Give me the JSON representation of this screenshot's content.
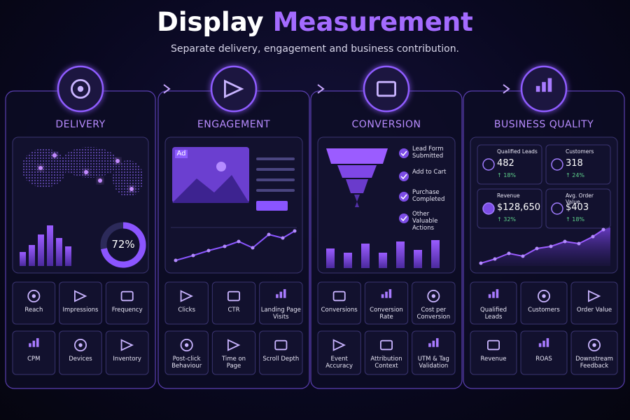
{
  "title": {
    "part1": "Display",
    "part2": "Measurement"
  },
  "subtitle": "Separate delivery, engagement and business contribution.",
  "columns": [
    {
      "heading": "DELIVERY",
      "donut": {
        "value": 72,
        "label": "72%"
      },
      "tiles": [
        "Reach",
        "Impressions",
        "Frequency",
        "CPM",
        "Devices",
        "Inventory"
      ]
    },
    {
      "heading": "ENGAGEMENT",
      "ad_label": "Ad",
      "tiles": [
        "Clicks",
        "CTR",
        "Landing Page Visits",
        "Post-click Behaviour",
        "Time on Page",
        "Scroll Depth"
      ]
    },
    {
      "heading": "CONVERSION",
      "funnel_steps": [
        "Lead Form Submitted",
        "Add to Cart",
        "Purchase Completed",
        "Other Valuable Actions"
      ],
      "tiles": [
        "Conversions",
        "Conversion Rate",
        "Cost per Conversion",
        "Event Accuracy",
        "Attribution Context",
        "UTM & Tag Validation"
      ]
    },
    {
      "heading": "BUSINESS QUALITY",
      "metrics": [
        {
          "label": "Qualified Leads",
          "value": "482",
          "change": "↑ 18%"
        },
        {
          "label": "Customers",
          "value": "318",
          "change": "↑ 24%"
        },
        {
          "label": "Revenue",
          "value": "$128,650",
          "change": "↑ 32%"
        },
        {
          "label": "Avg. Order Value",
          "value": "$403",
          "change": "↑ 18%"
        }
      ],
      "tiles": [
        "Qualified Leads",
        "Customers",
        "Order Value",
        "Revenue",
        "ROAS",
        "Downstream Feedback"
      ]
    }
  ]
}
